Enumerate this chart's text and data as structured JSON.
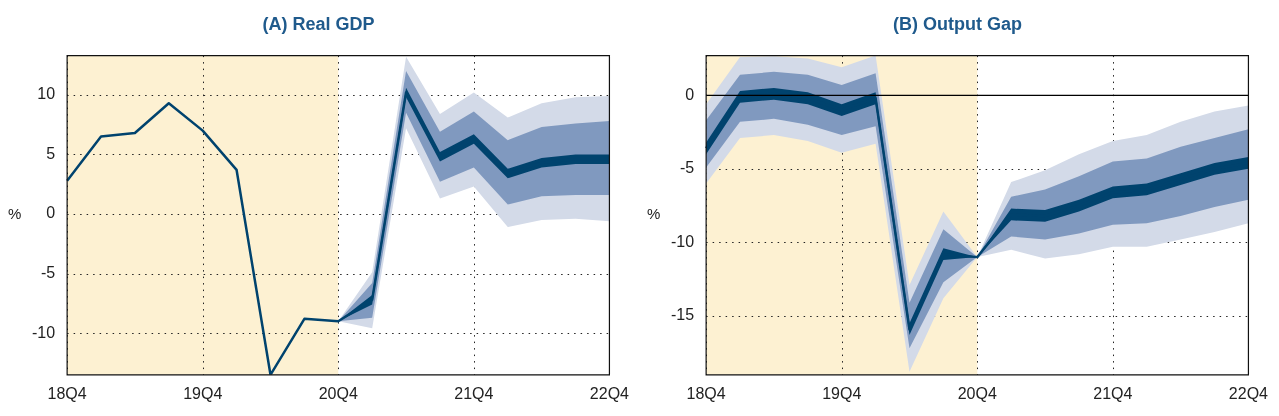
{
  "chart_data": [
    {
      "type": "line",
      "title": "(A) Real GDP",
      "ylabel": "%",
      "categories": [
        "18Q4",
        null,
        null,
        null,
        "19Q4",
        null,
        null,
        null,
        "20Q4",
        null,
        null,
        null,
        "21Q4",
        null,
        null,
        null,
        "22Q4"
      ],
      "ylim": [
        -13.5,
        13.3
      ],
      "yticks": [
        -10,
        -5,
        0,
        5,
        10
      ],
      "grid": true,
      "bands": [
        {
          "axis": "x",
          "from": "18Q4",
          "to": "20Q4",
          "color": "#fdf1d2"
        }
      ],
      "series": [
        {
          "color": "#d3dae8",
          "values": [
            null,
            null,
            null,
            null,
            null,
            null,
            null,
            null,
            null,
            null,
            null,
            null,
            null,
            null,
            null,
            null,
            null
          ],
          "lower": [
            null,
            null,
            null,
            null,
            null,
            null,
            null,
            null,
            -9.0,
            -9.6,
            7.2,
            1.3,
            2.3,
            -1.1,
            -0.5,
            -0.4,
            -0.6
          ],
          "upper": [
            null,
            null,
            null,
            null,
            null,
            null,
            null,
            null,
            -9.0,
            -4.9,
            13.2,
            8.4,
            10.2,
            8.1,
            9.3,
            9.8,
            9.9
          ]
        },
        {
          "color": "#8099bf",
          "values": [
            null,
            null,
            null,
            null,
            null,
            null,
            null,
            null,
            null,
            null,
            null,
            null,
            null,
            null,
            null,
            null,
            null
          ],
          "lower": [
            null,
            null,
            null,
            null,
            null,
            null,
            null,
            null,
            -9.0,
            -8.7,
            8.5,
            2.7,
            3.9,
            0.8,
            1.5,
            1.6,
            1.6
          ],
          "upper": [
            null,
            null,
            null,
            null,
            null,
            null,
            null,
            null,
            -9.0,
            -5.8,
            12.0,
            6.9,
            8.6,
            6.2,
            7.3,
            7.6,
            7.8
          ]
        },
        {
          "color": "#00436e",
          "values": [
            2.8,
            6.5,
            6.8,
            9.3,
            7.0,
            3.7,
            -13.5,
            -8.8,
            -9.0,
            -7.2,
            10.2,
            4.8,
            6.3,
            3.4,
            4.3,
            4.6,
            4.6
          ],
          "lower": [
            null,
            null,
            null,
            null,
            null,
            null,
            null,
            null,
            -9.0,
            -7.6,
            9.8,
            4.4,
            5.9,
            3.0,
            3.9,
            4.2,
            4.2
          ],
          "upper": [
            null,
            null,
            null,
            null,
            null,
            null,
            null,
            null,
            -9.0,
            -6.8,
            10.6,
            5.2,
            6.7,
            3.8,
            4.7,
            5.0,
            5.0
          ]
        }
      ]
    },
    {
      "type": "line",
      "title": "(B) Output Gap",
      "ylabel": "%",
      "categories": [
        "18Q4",
        null,
        null,
        null,
        "19Q4",
        null,
        null,
        null,
        "20Q4",
        null,
        null,
        null,
        "21Q4",
        null,
        null,
        null,
        "22Q4"
      ],
      "ylim": [
        -19,
        2.7
      ],
      "yticks": [
        -15,
        -10,
        -5,
        0
      ],
      "grid": true,
      "bands": [
        {
          "axis": "x",
          "from": "18Q4",
          "to": "20Q4",
          "color": "#fdf1d2"
        }
      ],
      "ref_lines": [
        {
          "axis": "y",
          "value": 0,
          "color": "#000000"
        }
      ],
      "series": [
        {
          "color": "#d3dae8",
          "values": [
            null,
            null,
            null,
            null,
            null,
            null,
            null,
            null,
            null,
            null,
            null,
            null,
            null,
            null,
            null,
            null,
            null
          ],
          "lower": [
            -6.0,
            -2.9,
            -2.7,
            -3.1,
            -3.9,
            -3.3,
            -18.8,
            -13.8,
            -11.0,
            -10.5,
            -11.1,
            -10.8,
            -10.3,
            -10.3,
            -9.8,
            -9.3,
            -8.7
          ],
          "upper": [
            -0.6,
            2.6,
            2.65,
            2.5,
            1.9,
            2.7,
            -12.9,
            -7.9,
            -11.0,
            -5.9,
            -5.1,
            -4.0,
            -3.1,
            -2.7,
            -1.8,
            -1.1,
            -0.7
          ]
        },
        {
          "color": "#8099bf",
          "values": [
            null,
            null,
            null,
            null,
            null,
            null,
            null,
            null,
            null,
            null,
            null,
            null,
            null,
            null,
            null,
            null,
            null
          ],
          "lower": [
            -4.9,
            -1.8,
            -1.6,
            -2.0,
            -2.7,
            -2.1,
            -17.2,
            -12.7,
            -11.0,
            -9.6,
            -9.8,
            -9.4,
            -8.8,
            -8.7,
            -8.2,
            -7.6,
            -7.1
          ],
          "upper": [
            -1.7,
            1.4,
            1.6,
            1.4,
            0.7,
            1.5,
            -14.1,
            -9.1,
            -11.0,
            -6.9,
            -6.4,
            -5.5,
            -4.5,
            -4.3,
            -3.5,
            -2.9,
            -2.3
          ]
        },
        {
          "color": "#00436e",
          "values": [
            -3.6,
            -0.1,
            0.1,
            -0.2,
            -1.0,
            -0.2,
            -15.9,
            -10.8,
            -11.0,
            -8.1,
            -8.2,
            -7.5,
            -6.6,
            -6.4,
            -5.7,
            -5.0,
            -4.6
          ],
          "lower": [
            -4.0,
            -0.5,
            -0.3,
            -0.6,
            -1.4,
            -0.6,
            -16.3,
            -11.2,
            -11.0,
            -8.5,
            -8.6,
            -7.9,
            -7.0,
            -6.8,
            -6.1,
            -5.4,
            -5.0
          ],
          "upper": [
            -3.2,
            0.3,
            0.5,
            0.2,
            -0.6,
            0.2,
            -15.5,
            -10.4,
            -11.0,
            -7.7,
            -7.8,
            -7.1,
            -6.2,
            -6.0,
            -5.3,
            -4.6,
            -4.2
          ]
        }
      ]
    }
  ]
}
